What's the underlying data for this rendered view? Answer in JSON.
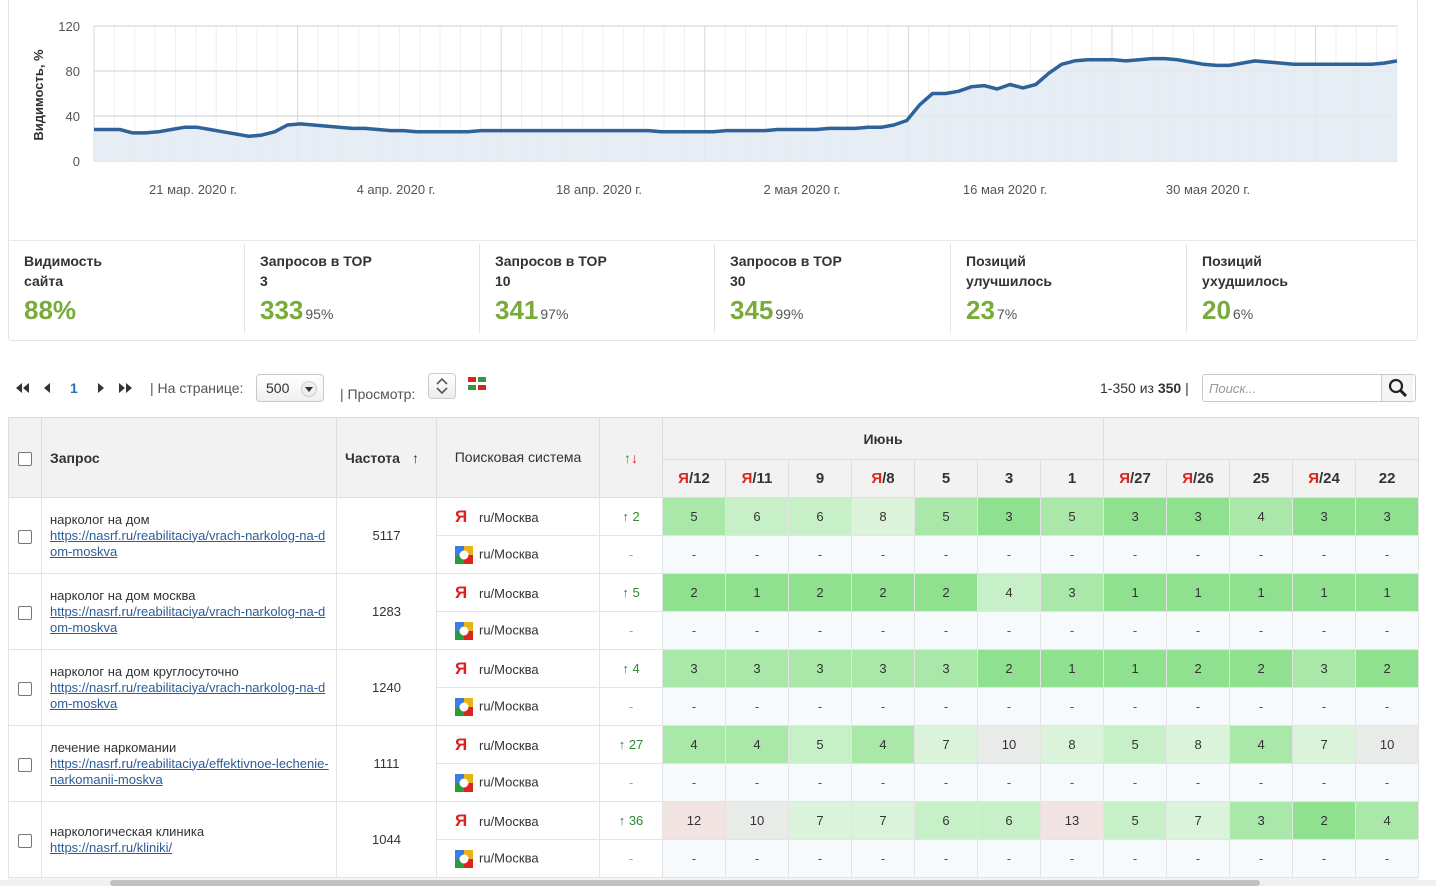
{
  "chart_data": {
    "type": "area",
    "ylabel": "Видимость, %",
    "ylim": [
      0,
      120
    ],
    "yticks": [
      0,
      40,
      80,
      120
    ],
    "xticks": [
      "21 мар. 2020 г.",
      "4 апр. 2020 г.",
      "18 апр. 2020 г.",
      "2 мая 2020 г.",
      "16 мая 2020 г.",
      "30 мая 2020 г."
    ],
    "series": [
      {
        "color": "#2f6298",
        "fill": "#e3eaf2",
        "values": [
          28,
          28,
          28,
          25,
          25,
          26,
          28,
          30,
          30,
          28,
          26,
          24,
          22,
          23,
          26,
          32,
          33,
          32,
          31,
          30,
          29,
          29,
          28,
          27,
          27,
          26,
          26,
          26,
          26,
          26,
          27,
          27,
          27,
          27,
          27,
          27,
          27,
          27,
          27,
          27,
          27,
          27,
          27,
          27,
          26,
          26,
          26,
          26,
          26,
          27,
          27,
          27,
          27,
          28,
          28,
          28,
          28,
          29,
          29,
          29,
          30,
          30,
          32,
          36,
          50,
          60,
          60,
          62,
          66,
          67,
          64,
          68,
          65,
          68,
          78,
          86,
          89,
          90,
          90,
          90,
          89,
          90,
          91,
          91,
          90,
          88,
          86,
          85,
          85,
          87,
          89,
          88,
          87,
          86,
          86,
          86,
          86,
          86,
          86,
          86,
          87,
          89
        ]
      }
    ]
  },
  "kpis": [
    {
      "label": "Видимость сайта",
      "value": "88%",
      "pct": ""
    },
    {
      "label": "Запросов в TOP 3",
      "value": "333",
      "pct": "95%"
    },
    {
      "label": "Запросов в TOP 10",
      "value": "341",
      "pct": "97%"
    },
    {
      "label": "Запросов в TOP 30",
      "value": "345",
      "pct": "99%"
    },
    {
      "label": "Позиций улучшилось",
      "value": "23",
      "pct": "7%"
    },
    {
      "label": "Позиций ухудшилось",
      "value": "20",
      "pct": "6%"
    }
  ],
  "toolbar": {
    "page": "1",
    "per_page_label": "| На странице:",
    "per_page_value": "500",
    "view_label": "| Просмотр:",
    "range_text": "1-350 из",
    "range_total": "350",
    "range_sep": "|",
    "search_placeholder": "Поиск..."
  },
  "table": {
    "headers": {
      "query": "Запрос",
      "freq": "Частота",
      "freq_sort": "↑",
      "engine": "Поисковая система",
      "delta_up": "↑",
      "delta_down": "↓",
      "month": "Июнь"
    },
    "dates": [
      {
        "ya": "Я",
        "day": "/12"
      },
      {
        "ya": "Я",
        "day": "/11"
      },
      {
        "ya": "",
        "day": "9"
      },
      {
        "ya": "Я",
        "day": "/8"
      },
      {
        "ya": "",
        "day": "5"
      },
      {
        "ya": "",
        "day": "3"
      },
      {
        "ya": "",
        "day": "1"
      },
      {
        "ya": "Я",
        "day": "/27"
      },
      {
        "ya": "Я",
        "day": "/26"
      },
      {
        "ya": "",
        "day": "25"
      },
      {
        "ya": "Я",
        "day": "/24"
      },
      {
        "ya": "",
        "day": "22"
      }
    ],
    "rows": [
      {
        "title": "нарколог на дом",
        "url": "https://nasrf.ru/reabilitaciya/vrach-narkolog-na-dom-moskva",
        "freq": "5117",
        "ya_region": "ru/Москва",
        "g_region": "ru/Москва",
        "delta": "↑ 2",
        "g_delta": "-",
        "positions": [
          "5",
          "6",
          "6",
          "8",
          "5",
          "3",
          "5",
          "3",
          "3",
          "4",
          "3",
          "3"
        ],
        "levels": [
          2,
          3,
          3,
          4,
          2,
          1,
          2,
          1,
          1,
          2,
          1,
          1
        ]
      },
      {
        "title": "нарколог на дом москва",
        "url": "https://nasrf.ru/reabilitaciya/vrach-narkolog-na-dom-moskva",
        "freq": "1283",
        "ya_region": "ru/Москва",
        "g_region": "ru/Москва",
        "delta": "↑ 5",
        "g_delta": "-",
        "positions": [
          "2",
          "1",
          "2",
          "2",
          "2",
          "4",
          "3",
          "1",
          "1",
          "1",
          "1",
          "1"
        ],
        "levels": [
          1,
          1,
          1,
          1,
          1,
          3,
          2,
          1,
          1,
          1,
          1,
          1
        ]
      },
      {
        "title": "нарколог на дом круглосуточно",
        "url": "https://nasrf.ru/reabilitaciya/vrach-narkolog-na-dom-moskva",
        "freq": "1240",
        "ya_region": "ru/Москва",
        "g_region": "ru/Москва",
        "delta": "↑ 4",
        "g_delta": "-",
        "positions": [
          "3",
          "3",
          "3",
          "3",
          "3",
          "2",
          "1",
          "1",
          "2",
          "2",
          "3",
          "2"
        ],
        "levels": [
          2,
          2,
          2,
          2,
          2,
          1,
          1,
          1,
          1,
          1,
          2,
          1
        ]
      },
      {
        "title": "лечение наркомании",
        "url": "https://nasrf.ru/reabilitaciya/effektivnoe-lechenie-narkomanii-moskva",
        "freq": "1111",
        "ya_region": "ru/Москва",
        "g_region": "ru/Москва",
        "delta": "↑ 27",
        "g_delta": "-",
        "positions": [
          "4",
          "4",
          "5",
          "4",
          "7",
          "10",
          "8",
          "5",
          "8",
          "4",
          "7",
          "10"
        ],
        "levels": [
          2,
          2,
          3,
          2,
          4,
          5,
          4,
          3,
          4,
          2,
          4,
          5
        ]
      },
      {
        "title": "наркологическая клиника",
        "url": "https://nasrf.ru/kliniki/",
        "freq": "1044",
        "ya_region": "ru/Москва",
        "g_region": "ru/Москва",
        "delta": "↑ 36",
        "g_delta": "-",
        "positions": [
          "12",
          "10",
          "7",
          "7",
          "6",
          "6",
          "13",
          "5",
          "7",
          "3",
          "2",
          "4"
        ],
        "levels": [
          6,
          5,
          4,
          4,
          3,
          3,
          6,
          3,
          4,
          2,
          1,
          2
        ]
      }
    ]
  }
}
